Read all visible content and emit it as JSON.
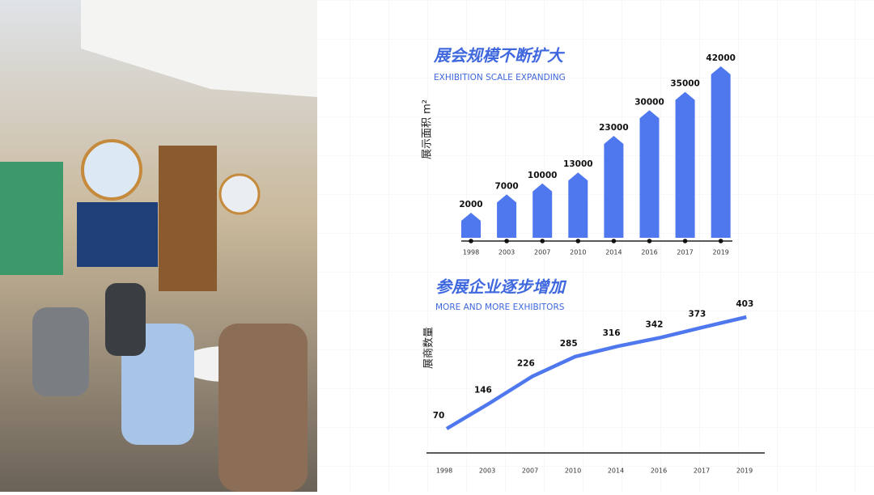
{
  "chart_data": [
    {
      "type": "bar",
      "title": "展会规模不断扩大",
      "subtitle": "EXHIBITION SCALE EXPANDING",
      "y_label": "展示面积 m²",
      "categories": [
        "1998",
        "2003",
        "2007",
        "2010",
        "2014",
        "2016",
        "2017",
        "2019"
      ],
      "values": [
        2000,
        7000,
        10000,
        13000,
        23000,
        30000,
        35000,
        42000
      ],
      "color": "#4f78ef"
    },
    {
      "type": "line",
      "title": "参展企业逐步增加",
      "subtitle": "MORE AND MORE EXHIBITORS",
      "y_label": "展商数量",
      "categories": [
        "1998",
        "2003",
        "2007",
        "2010",
        "2014",
        "2016",
        "2017",
        "2019"
      ],
      "values": [
        70,
        146,
        226,
        285,
        316,
        342,
        373,
        403
      ],
      "color": "#4f78ef"
    }
  ]
}
